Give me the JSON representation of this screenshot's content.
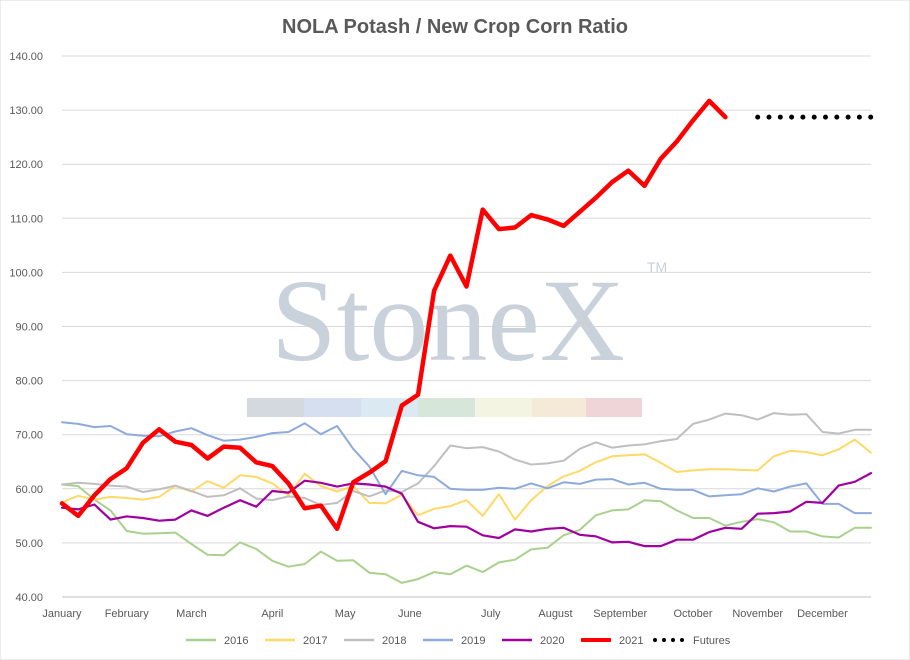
{
  "chart_data": {
    "type": "line",
    "title": "NOLA Potash / New Crop Corn Ratio",
    "y_ticks": [
      "40.00",
      "50.00",
      "60.00",
      "70.00",
      "80.00",
      "90.00",
      "100.00",
      "110.00",
      "120.00",
      "130.00",
      "140.00"
    ],
    "ylim": [
      40,
      140
    ],
    "xlim": [
      0,
      50
    ],
    "month_labels": [
      {
        "label": "January",
        "x": 0
      },
      {
        "label": "February",
        "x": 4
      },
      {
        "label": "March",
        "x": 8
      },
      {
        "label": "April",
        "x": 13
      },
      {
        "label": "May",
        "x": 17.5
      },
      {
        "label": "June",
        "x": 21.5
      },
      {
        "label": "July",
        "x": 26.5
      },
      {
        "label": "August",
        "x": 30.5
      },
      {
        "label": "September",
        "x": 34.5
      },
      {
        "label": "October",
        "x": 39
      },
      {
        "label": "November",
        "x": 43
      },
      {
        "label": "December",
        "x": 47
      }
    ],
    "grid": "horizontal",
    "legend_position": "bottom",
    "watermark": {
      "text": "StoneX",
      "tm": "TM"
    },
    "series": [
      {
        "name": "2016",
        "color": "#a9d18e",
        "width": 2,
        "x": [
          0,
          1,
          2,
          3,
          4,
          5,
          6,
          7,
          8,
          9,
          10,
          11,
          12,
          13,
          14,
          15,
          16,
          17,
          18,
          19,
          20,
          21,
          22,
          23,
          24,
          25,
          26,
          27,
          28,
          29,
          30,
          31,
          32,
          33,
          34,
          35,
          36,
          37,
          38,
          39,
          40,
          41,
          42,
          43,
          44,
          45,
          46,
          47,
          48,
          49,
          50
        ],
        "values": [
          60.8,
          60.5,
          58,
          56,
          52.2,
          51.7,
          51.8,
          51.9,
          49.8,
          47.8,
          47.7,
          50.1,
          48.9,
          46.7,
          45.6,
          46.1,
          48.4,
          46.7,
          46.8,
          44.5,
          44.2,
          42.6,
          43.3,
          44.6,
          44.2,
          45.8,
          44.6,
          46.4,
          46.9,
          48.8,
          49.1,
          51.4,
          52.4,
          55.1,
          56,
          56.2,
          57.9,
          57.7,
          56,
          54.6,
          54.6,
          53.2,
          53.9,
          54.4,
          53.8,
          52.1,
          52.1,
          51.2,
          51,
          52.8,
          52.8
        ]
      },
      {
        "name": "2017",
        "color": "#ffd966",
        "width": 2,
        "x": [
          0,
          1,
          2,
          3,
          4,
          5,
          6,
          7,
          8,
          9,
          10,
          11,
          12,
          13,
          14,
          15,
          16,
          17,
          18,
          19,
          20,
          21,
          22,
          23,
          24,
          25,
          26,
          27,
          28,
          29,
          30,
          31,
          32,
          33,
          34,
          35,
          36,
          37,
          38,
          39,
          40,
          41,
          42,
          43,
          44,
          45,
          46,
          47,
          48,
          49,
          50
        ],
        "values": [
          57.5,
          58.7,
          58,
          58.5,
          58.3,
          58,
          58.5,
          60.5,
          59.5,
          61.4,
          60.2,
          62.5,
          62.2,
          61,
          58.8,
          62.8,
          60.5,
          59.5,
          60.5,
          57.4,
          57.3,
          58.9,
          55.1,
          56.3,
          56.8,
          57.9,
          55,
          59,
          54.3,
          57.9,
          60.5,
          62.3,
          63.3,
          64.9,
          66,
          66.2,
          66.4,
          64.8,
          63.1,
          63.4,
          63.6,
          63.6,
          63.5,
          63.4,
          66,
          67,
          66.8,
          66.2,
          67.3,
          69.1,
          66.7
        ]
      },
      {
        "name": "2018",
        "color": "#bfbfbf",
        "width": 2,
        "x": [
          0,
          1,
          2,
          3,
          4,
          5,
          6,
          7,
          8,
          9,
          10,
          11,
          12,
          13,
          14,
          15,
          16,
          17,
          18,
          19,
          20,
          21,
          22,
          23,
          24,
          25,
          26,
          27,
          28,
          29,
          30,
          31,
          32,
          33,
          34,
          35,
          36,
          37,
          38,
          39,
          40,
          41,
          42,
          43,
          44,
          45,
          46,
          47,
          48,
          49,
          50
        ],
        "values": [
          60.8,
          61.1,
          60.9,
          60.6,
          60.4,
          59.4,
          59.9,
          60.6,
          59.6,
          58.5,
          58.8,
          60.1,
          58.2,
          57.9,
          58.6,
          58.3,
          57,
          57.4,
          59.6,
          58.6,
          59.7,
          59.4,
          61,
          64.2,
          68,
          67.5,
          67.7,
          66.9,
          65.4,
          64.5,
          64.7,
          65.2,
          67.4,
          68.6,
          67.6,
          68,
          68.2,
          68.8,
          69.2,
          72,
          72.8,
          73.9,
          73.6,
          72.8,
          74,
          73.7,
          73.8,
          70.5,
          70.2,
          70.9,
          70.9
        ]
      },
      {
        "name": "2019",
        "color": "#8eaadb",
        "width": 2,
        "x": [
          0,
          1,
          2,
          3,
          4,
          5,
          6,
          7,
          8,
          9,
          10,
          11,
          12,
          13,
          14,
          15,
          16,
          17,
          18,
          19,
          20,
          21,
          22,
          23,
          24,
          25,
          26,
          27,
          28,
          29,
          30,
          31,
          32,
          33,
          34,
          35,
          36,
          37,
          38,
          39,
          40,
          41,
          42,
          43,
          44,
          45,
          46,
          47,
          48,
          49,
          50
        ],
        "values": [
          72.3,
          72,
          71.4,
          71.6,
          70.1,
          69.8,
          69.7,
          70.6,
          71.2,
          69.9,
          68.9,
          69.1,
          69.6,
          70.3,
          70.5,
          72.1,
          70.1,
          71.6,
          67.4,
          64.1,
          59,
          63.3,
          62.5,
          62.2,
          60,
          59.8,
          59.8,
          60.2,
          60,
          61,
          60.1,
          61.2,
          60.9,
          61.7,
          61.8,
          60.8,
          61.1,
          60,
          59.8,
          59.8,
          58.6,
          58.8,
          59,
          60.1,
          59.5,
          60.4,
          61,
          57.2,
          57.2,
          55.5,
          55.5
        ]
      },
      {
        "name": "2020",
        "color": "#a000a0",
        "width": 2.2,
        "x": [
          0,
          1,
          2,
          3,
          4,
          5,
          6,
          7,
          8,
          9,
          10,
          11,
          12,
          13,
          14,
          15,
          16,
          17,
          18,
          19,
          20,
          21,
          22,
          23,
          24,
          25,
          26,
          27,
          28,
          29,
          30,
          31,
          32,
          33,
          34,
          35,
          36,
          37,
          38,
          39,
          40,
          41,
          42,
          43,
          44,
          45,
          46,
          47,
          48,
          49,
          50
        ],
        "values": [
          56.5,
          56.2,
          57.1,
          54.3,
          54.9,
          54.6,
          54.1,
          54.3,
          56,
          55,
          56.5,
          57.9,
          56.7,
          59.6,
          59.3,
          61.5,
          61.1,
          60.4,
          61,
          60.8,
          60.4,
          59.1,
          53.9,
          52.7,
          53.1,
          53,
          51.4,
          50.9,
          52.5,
          52.1,
          52.6,
          52.8,
          51.5,
          51.2,
          50.1,
          50.2,
          49.4,
          49.4,
          50.6,
          50.6,
          52,
          52.8,
          52.6,
          55.4,
          55.5,
          55.8,
          57.6,
          57.4,
          60.6,
          61.3,
          62.9
        ]
      },
      {
        "name": "2021",
        "color": "#ff0000",
        "width": 4.5,
        "x": [
          0,
          1,
          2,
          3,
          4,
          5,
          6,
          7,
          8,
          9,
          10,
          11,
          12,
          13,
          14,
          15,
          16,
          17,
          18,
          19,
          20,
          21,
          22,
          23,
          24,
          25,
          26,
          27,
          28,
          29,
          30,
          31,
          32,
          33,
          34,
          35,
          36,
          37,
          38,
          39,
          40,
          41
        ],
        "values": [
          57.3,
          55,
          58.8,
          61.8,
          63.8,
          68.5,
          71,
          68.7,
          68.1,
          65.6,
          67.8,
          67.6,
          64.9,
          64.2,
          61,
          56.4,
          56.9,
          52.6,
          61.2,
          63,
          65.1,
          75.4,
          77.4,
          96.6,
          103.1,
          97.4,
          111.6,
          108,
          108.3,
          110.6,
          109.8,
          108.6,
          111.2,
          113.8,
          116.7,
          118.8,
          116,
          121,
          124.2,
          128.1,
          131.7,
          128.7
        ]
      },
      {
        "name": "Futures",
        "color": "#000000",
        "width": 5,
        "dotted": true,
        "x": [
          43,
          50
        ],
        "values": [
          128.7,
          128.7
        ]
      }
    ]
  }
}
